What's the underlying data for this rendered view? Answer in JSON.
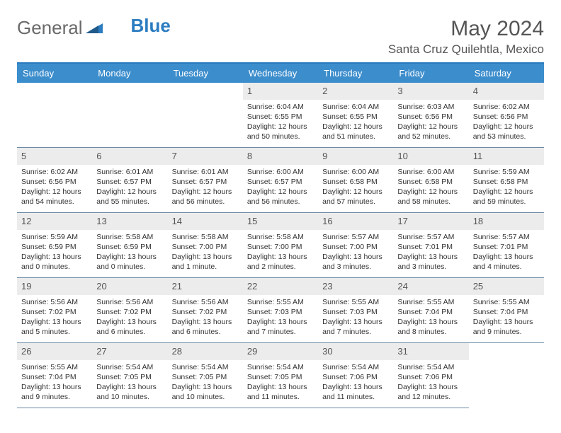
{
  "brand": {
    "part1": "General",
    "part2": "Blue"
  },
  "title": "May 2024",
  "location": "Santa Cruz Quilehtla, Mexico",
  "colors": {
    "header_bg": "#3c8dcc",
    "header_border_top": "#2b7cc0",
    "row_divider": "#6a8aa5",
    "daynum_bg": "#ececec",
    "text": "#333333",
    "title_text": "#555555",
    "logo_gray": "#6a6a6a",
    "logo_blue": "#2b7cc0",
    "background": "#ffffff"
  },
  "layout": {
    "columns": 7,
    "rows": 5,
    "font_family": "Arial",
    "day_header_fontsize": 13,
    "daynum_fontsize": 13,
    "cell_fontsize": 10.5,
    "title_fontsize": 30,
    "location_fontsize": 17,
    "logo_fontsize": 26
  },
  "day_names": [
    "Sunday",
    "Monday",
    "Tuesday",
    "Wednesday",
    "Thursday",
    "Friday",
    "Saturday"
  ],
  "leading_blanks": 3,
  "days": [
    {
      "n": "1",
      "sunrise": "6:04 AM",
      "sunset": "6:55 PM",
      "daylight": "12 hours and 50 minutes."
    },
    {
      "n": "2",
      "sunrise": "6:04 AM",
      "sunset": "6:55 PM",
      "daylight": "12 hours and 51 minutes."
    },
    {
      "n": "3",
      "sunrise": "6:03 AM",
      "sunset": "6:56 PM",
      "daylight": "12 hours and 52 minutes."
    },
    {
      "n": "4",
      "sunrise": "6:02 AM",
      "sunset": "6:56 PM",
      "daylight": "12 hours and 53 minutes."
    },
    {
      "n": "5",
      "sunrise": "6:02 AM",
      "sunset": "6:56 PM",
      "daylight": "12 hours and 54 minutes."
    },
    {
      "n": "6",
      "sunrise": "6:01 AM",
      "sunset": "6:57 PM",
      "daylight": "12 hours and 55 minutes."
    },
    {
      "n": "7",
      "sunrise": "6:01 AM",
      "sunset": "6:57 PM",
      "daylight": "12 hours and 56 minutes."
    },
    {
      "n": "8",
      "sunrise": "6:00 AM",
      "sunset": "6:57 PM",
      "daylight": "12 hours and 56 minutes."
    },
    {
      "n": "9",
      "sunrise": "6:00 AM",
      "sunset": "6:58 PM",
      "daylight": "12 hours and 57 minutes."
    },
    {
      "n": "10",
      "sunrise": "6:00 AM",
      "sunset": "6:58 PM",
      "daylight": "12 hours and 58 minutes."
    },
    {
      "n": "11",
      "sunrise": "5:59 AM",
      "sunset": "6:58 PM",
      "daylight": "12 hours and 59 minutes."
    },
    {
      "n": "12",
      "sunrise": "5:59 AM",
      "sunset": "6:59 PM",
      "daylight": "13 hours and 0 minutes."
    },
    {
      "n": "13",
      "sunrise": "5:58 AM",
      "sunset": "6:59 PM",
      "daylight": "13 hours and 0 minutes."
    },
    {
      "n": "14",
      "sunrise": "5:58 AM",
      "sunset": "7:00 PM",
      "daylight": "13 hours and 1 minute."
    },
    {
      "n": "15",
      "sunrise": "5:58 AM",
      "sunset": "7:00 PM",
      "daylight": "13 hours and 2 minutes."
    },
    {
      "n": "16",
      "sunrise": "5:57 AM",
      "sunset": "7:00 PM",
      "daylight": "13 hours and 3 minutes."
    },
    {
      "n": "17",
      "sunrise": "5:57 AM",
      "sunset": "7:01 PM",
      "daylight": "13 hours and 3 minutes."
    },
    {
      "n": "18",
      "sunrise": "5:57 AM",
      "sunset": "7:01 PM",
      "daylight": "13 hours and 4 minutes."
    },
    {
      "n": "19",
      "sunrise": "5:56 AM",
      "sunset": "7:02 PM",
      "daylight": "13 hours and 5 minutes."
    },
    {
      "n": "20",
      "sunrise": "5:56 AM",
      "sunset": "7:02 PM",
      "daylight": "13 hours and 6 minutes."
    },
    {
      "n": "21",
      "sunrise": "5:56 AM",
      "sunset": "7:02 PM",
      "daylight": "13 hours and 6 minutes."
    },
    {
      "n": "22",
      "sunrise": "5:55 AM",
      "sunset": "7:03 PM",
      "daylight": "13 hours and 7 minutes."
    },
    {
      "n": "23",
      "sunrise": "5:55 AM",
      "sunset": "7:03 PM",
      "daylight": "13 hours and 7 minutes."
    },
    {
      "n": "24",
      "sunrise": "5:55 AM",
      "sunset": "7:04 PM",
      "daylight": "13 hours and 8 minutes."
    },
    {
      "n": "25",
      "sunrise": "5:55 AM",
      "sunset": "7:04 PM",
      "daylight": "13 hours and 9 minutes."
    },
    {
      "n": "26",
      "sunrise": "5:55 AM",
      "sunset": "7:04 PM",
      "daylight": "13 hours and 9 minutes."
    },
    {
      "n": "27",
      "sunrise": "5:54 AM",
      "sunset": "7:05 PM",
      "daylight": "13 hours and 10 minutes."
    },
    {
      "n": "28",
      "sunrise": "5:54 AM",
      "sunset": "7:05 PM",
      "daylight": "13 hours and 10 minutes."
    },
    {
      "n": "29",
      "sunrise": "5:54 AM",
      "sunset": "7:05 PM",
      "daylight": "13 hours and 11 minutes."
    },
    {
      "n": "30",
      "sunrise": "5:54 AM",
      "sunset": "7:06 PM",
      "daylight": "13 hours and 11 minutes."
    },
    {
      "n": "31",
      "sunrise": "5:54 AM",
      "sunset": "7:06 PM",
      "daylight": "13 hours and 12 minutes."
    }
  ],
  "labels": {
    "sunrise": "Sunrise: ",
    "sunset": "Sunset: ",
    "daylight": "Daylight: "
  }
}
